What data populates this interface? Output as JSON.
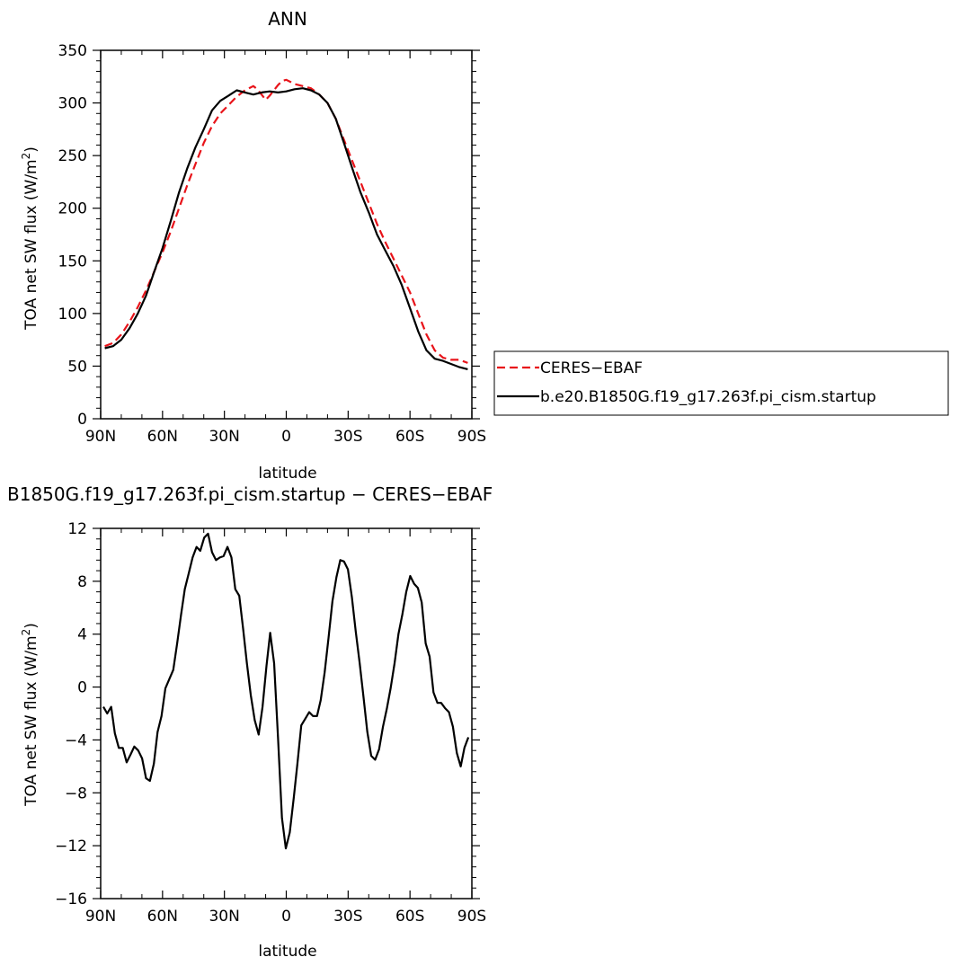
{
  "chart_data": [
    {
      "type": "line",
      "title": "ANN",
      "xlabel": "latitude",
      "ylabel": "TOA net SW flux (W/m²)",
      "ylabel_main": "TOA net SW flux (W/m",
      "ylabel_sup": "2",
      "ylabel_end": ")",
      "xlim": [
        90,
        -90
      ],
      "ylim": [
        0,
        350
      ],
      "x_ticks": [
        90,
        60,
        30,
        0,
        -30,
        -60,
        -90
      ],
      "x_tick_labels": [
        "90N",
        "60N",
        "30N",
        "0",
        "30S",
        "60S",
        "90S"
      ],
      "y_ticks": [
        0,
        50,
        100,
        150,
        200,
        250,
        300,
        350
      ],
      "y_tick_labels": [
        "0",
        "50",
        "100",
        "150",
        "200",
        "250",
        "300",
        "350"
      ],
      "grid": false,
      "legend_position": "right",
      "series": [
        {
          "name": "CERES−EBAF",
          "color": "#e8141a",
          "dash": "dashed",
          "x": [
            88,
            84,
            80,
            76,
            72,
            68,
            64,
            60,
            56,
            52,
            48,
            44,
            40,
            36,
            32,
            28,
            24,
            20,
            16,
            14,
            12,
            10,
            8,
            6,
            4,
            2,
            0,
            -2,
            -4,
            -8,
            -12,
            -16,
            -20,
            -24,
            -28,
            -32,
            -36,
            -40,
            -44,
            -48,
            -52,
            -56,
            -60,
            -64,
            -68,
            -72,
            -76,
            -80,
            -84,
            -88
          ],
          "values": [
            69,
            72,
            80,
            92,
            106,
            122,
            140,
            158,
            178,
            200,
            222,
            242,
            262,
            278,
            290,
            298,
            306,
            312,
            316,
            313,
            308,
            303,
            307,
            312,
            317,
            321,
            322,
            320,
            318,
            316,
            314,
            308,
            300,
            285,
            265,
            245,
            225,
            205,
            185,
            168,
            152,
            136,
            120,
            100,
            80,
            65,
            58,
            56,
            56,
            53
          ]
        },
        {
          "name": "b.e20.B1850G.f19_g17.263f.pi_cism.startup",
          "color": "#000000",
          "dash": "solid",
          "x": [
            88,
            84,
            80,
            76,
            72,
            68,
            64,
            60,
            56,
            52,
            48,
            44,
            40,
            36,
            32,
            28,
            24,
            20,
            16,
            12,
            8,
            4,
            0,
            -4,
            -8,
            -12,
            -16,
            -20,
            -24,
            -28,
            -32,
            -36,
            -40,
            -44,
            -48,
            -52,
            -56,
            -60,
            -64,
            -68,
            -72,
            -76,
            -80,
            -84,
            -88
          ],
          "values": [
            67,
            69,
            75,
            86,
            100,
            117,
            140,
            162,
            188,
            215,
            238,
            258,
            275,
            293,
            302,
            307,
            312,
            310,
            308,
            310,
            311,
            310,
            311,
            313,
            314,
            312,
            308,
            300,
            285,
            262,
            238,
            215,
            196,
            175,
            160,
            145,
            127,
            105,
            83,
            65,
            57,
            55,
            52,
            49,
            47
          ]
        }
      ]
    },
    {
      "type": "line",
      "title": "B1850G.f19_g17.263f.pi_cism.startup − CERES−EBAF",
      "xlabel": "latitude",
      "ylabel": "TOA net SW flux (W/m²)",
      "ylabel_main": "TOA net SW flux (W/m",
      "ylabel_sup": "2",
      "ylabel_end": ")",
      "xlim": [
        90,
        -90
      ],
      "ylim": [
        -16,
        12
      ],
      "x_ticks": [
        90,
        60,
        30,
        0,
        -30,
        -60,
        -90
      ],
      "x_tick_labels": [
        "90N",
        "60N",
        "30N",
        "0",
        "30S",
        "60S",
        "90S"
      ],
      "y_ticks": [
        -16,
        -12,
        -8,
        -4,
        0,
        4,
        8,
        12
      ],
      "y_tick_labels": [
        "−16",
        "−12",
        "−8",
        "−4",
        "0",
        "4",
        "8",
        "12"
      ],
      "grid": false,
      "series": [
        {
          "color": "#000000",
          "dash": "solid",
          "x": [
            88.7,
            86.8,
            84.9,
            83.1,
            81.2,
            79.3,
            77.4,
            75.5,
            73.7,
            71.8,
            69.9,
            68.0,
            66.1,
            64.2,
            62.4,
            60.5,
            58.6,
            56.7,
            54.8,
            52.9,
            51.1,
            49.2,
            47.3,
            45.4,
            43.5,
            41.7,
            39.8,
            37.9,
            36.0,
            34.1,
            32.2,
            30.4,
            28.5,
            26.6,
            24.7,
            22.8,
            20.9,
            19.1,
            17.2,
            15.3,
            13.4,
            11.5,
            9.6,
            7.8,
            5.9,
            4.0,
            2.1,
            0.2,
            -1.7,
            -3.6,
            -5.4,
            -7.3,
            -9.2,
            -11.1,
            -13.0,
            -14.9,
            -16.7,
            -18.6,
            -20.5,
            -22.4,
            -24.3,
            -26.2,
            -28.0,
            -29.9,
            -31.8,
            -33.7,
            -35.6,
            -37.5,
            -39.3,
            -41.2,
            -43.1,
            -45.0,
            -46.9,
            -48.8,
            -50.6,
            -52.5,
            -54.4,
            -56.3,
            -58.2,
            -60.1,
            -62.0,
            -63.8,
            -65.7,
            -67.6,
            -69.5,
            -71.4,
            -73.3,
            -75.1,
            -77.0,
            -78.9,
            -80.8,
            -82.7,
            -84.6,
            -86.4,
            -88.3
          ],
          "values": [
            -1.5,
            -2.0,
            -1.5,
            -3.5,
            -4.6,
            -4.6,
            -5.7,
            -5.1,
            -4.5,
            -4.8,
            -5.4,
            -6.9,
            -7.1,
            -5.8,
            -3.4,
            -2.2,
            -0.1,
            0.6,
            1.3,
            3.3,
            5.4,
            7.4,
            8.6,
            9.8,
            10.6,
            10.3,
            11.3,
            11.6,
            10.2,
            9.6,
            9.8,
            9.9,
            10.6,
            9.8,
            7.4,
            6.9,
            4.4,
            1.8,
            -0.6,
            -2.5,
            -3.6,
            -1.5,
            1.6,
            4.1,
            1.8,
            -3.8,
            -9.9,
            -12.2,
            -11.0,
            -8.4,
            -5.8,
            -2.9,
            -2.4,
            -1.9,
            -2.2,
            -2.2,
            -1.0,
            1.1,
            3.7,
            6.5,
            8.3,
            9.6,
            9.5,
            8.9,
            6.8,
            4.2,
            1.8,
            -0.8,
            -3.4,
            -5.2,
            -5.5,
            -4.7,
            -3.0,
            -1.6,
            -0.1,
            1.8,
            4.0,
            5.5,
            7.2,
            8.4,
            7.8,
            7.5,
            6.4,
            3.3,
            2.3,
            -0.4,
            -1.2,
            -1.2,
            -1.6,
            -1.9,
            -3.0,
            -5.0,
            -6.0,
            -4.6,
            -3.8
          ]
        }
      ]
    }
  ]
}
